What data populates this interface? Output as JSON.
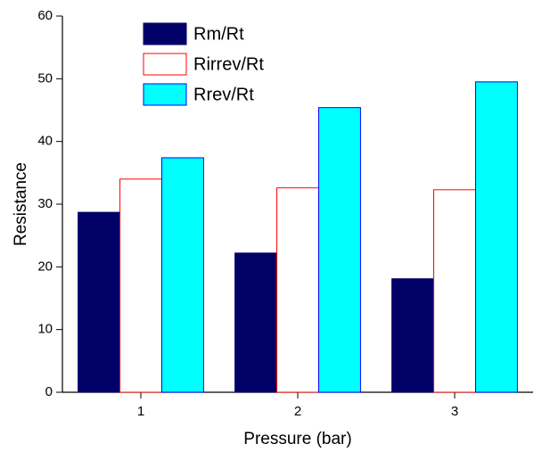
{
  "chart_data": {
    "type": "bar",
    "x_label": "Pressure (bar)",
    "y_label": "Resistance",
    "categories": [
      "1",
      "2",
      "3"
    ],
    "series": [
      {
        "name": "Rm/Rt",
        "color": "#000066",
        "edge": "#000066",
        "values": [
          28.7,
          22.2,
          18.1
        ]
      },
      {
        "name": "Rirrev/Rt",
        "color": "#ffffff",
        "edge": "#ff0000",
        "values": [
          34.0,
          32.6,
          32.3
        ]
      },
      {
        "name": "Rrev/Rt",
        "color": "#00ffff",
        "edge": "#0000ff",
        "values": [
          37.4,
          45.4,
          49.5
        ]
      }
    ],
    "ylim": [
      0,
      60
    ],
    "yticks": [
      0,
      10,
      20,
      30,
      40,
      50,
      60
    ],
    "grid": false,
    "legend": "upper left"
  }
}
